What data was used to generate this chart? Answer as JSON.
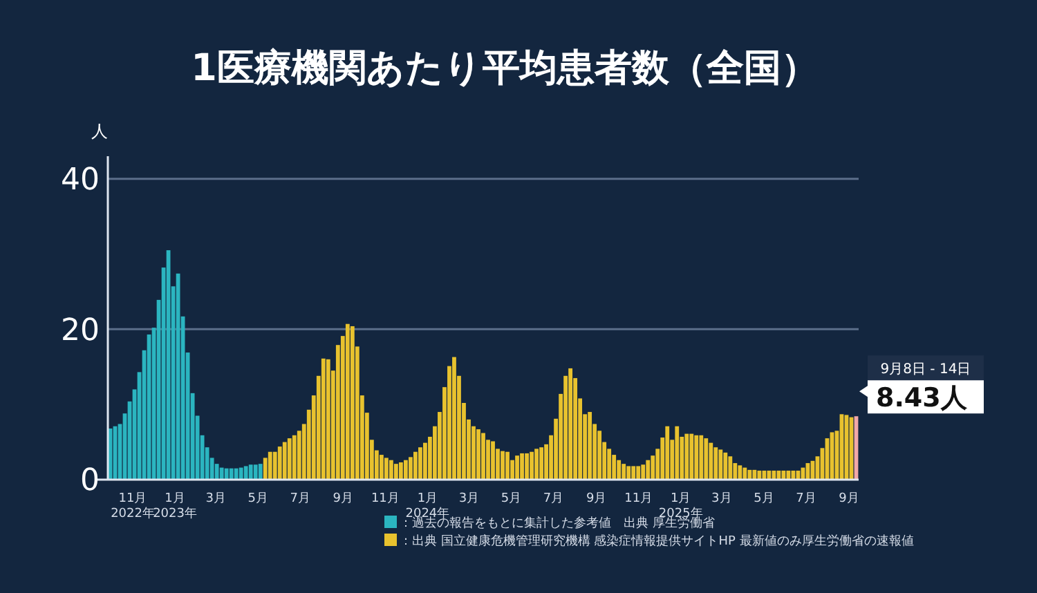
{
  "chart_data": {
    "type": "bar",
    "title": "1医療機関あたり平均患者数（全国）",
    "ylabel": "人",
    "xlim": [
      "2022-09-26",
      "2025-09-15"
    ],
    "ylim": [
      0,
      43
    ],
    "yticks": [
      0,
      20,
      40
    ],
    "grid": "y",
    "legend": "bottom",
    "xticks": [
      {
        "value": "2022-11-01",
        "label": "11月\n2022年"
      },
      {
        "value": "2023-01-01",
        "label": "1月\n2023年"
      },
      {
        "value": "2023-03-01",
        "label": "3月"
      },
      {
        "value": "2023-05-01",
        "label": "5月"
      },
      {
        "value": "2023-07-01",
        "label": "7月"
      },
      {
        "value": "2023-09-01",
        "label": "9月"
      },
      {
        "value": "2023-11-01",
        "label": "11月"
      },
      {
        "value": "2024-01-01",
        "label": "1月\n2024年"
      },
      {
        "value": "2024-03-01",
        "label": "3月"
      },
      {
        "value": "2024-05-01",
        "label": "5月"
      },
      {
        "value": "2024-07-01",
        "label": "7月"
      },
      {
        "value": "2024-09-01",
        "label": "9月"
      },
      {
        "value": "2024-11-01",
        "label": "11月"
      },
      {
        "value": "2025-01-01",
        "label": "1月\n2025年"
      },
      {
        "value": "2025-03-01",
        "label": "3月"
      },
      {
        "value": "2025-05-01",
        "label": "5月"
      },
      {
        "value": "2025-07-01",
        "label": "7月"
      },
      {
        "value": "2025-09-01",
        "label": "9月"
      }
    ],
    "series": [
      {
        "name": "：過去の報告をもとに集計した参考値　出典 厚生労働省",
        "color": "#2bb5c0",
        "x": [
          "2022-09-26",
          "2022-10-03",
          "2022-10-10",
          "2022-10-17",
          "2022-10-24",
          "2022-10-31",
          "2022-11-07",
          "2022-11-14",
          "2022-11-21",
          "2022-11-28",
          "2022-12-05",
          "2022-12-12",
          "2022-12-19",
          "2022-12-26",
          "2023-01-02",
          "2023-01-09",
          "2023-01-16",
          "2023-01-23",
          "2023-01-30",
          "2023-02-06",
          "2023-02-13",
          "2023-02-20",
          "2023-02-27",
          "2023-03-06",
          "2023-03-13",
          "2023-03-20",
          "2023-03-27",
          "2023-04-03",
          "2023-04-10",
          "2023-04-17",
          "2023-04-24",
          "2023-05-01"
        ],
        "values": [
          6.8,
          7.1,
          7.4,
          8.8,
          10.4,
          12,
          14.3,
          17.2,
          19.3,
          20.2,
          23.9,
          28.2,
          30.5,
          25.7,
          27.4,
          21.7,
          16.9,
          11.5,
          8.5,
          5.9,
          4.3,
          2.9,
          2.1,
          1.6,
          1.5,
          1.5,
          1.5,
          1.6,
          1.8,
          2,
          2,
          2.1
        ]
      },
      {
        "name": "：出典 国立健康危機管理研究機構 感染症情報提供サイトHP 最新値のみ厚生労働省の速報値",
        "color": "#e8c22e",
        "x": [
          "2023-05-08",
          "2023-05-15",
          "2023-05-22",
          "2023-05-29",
          "2023-06-05",
          "2023-06-12",
          "2023-06-19",
          "2023-06-26",
          "2023-07-03",
          "2023-07-10",
          "2023-07-17",
          "2023-07-24",
          "2023-07-31",
          "2023-08-07",
          "2023-08-14",
          "2023-08-21",
          "2023-08-28",
          "2023-09-04",
          "2023-09-11",
          "2023-09-18",
          "2023-09-25",
          "2023-10-02",
          "2023-10-09",
          "2023-10-16",
          "2023-10-23",
          "2023-10-30",
          "2023-11-06",
          "2023-11-13",
          "2023-11-20",
          "2023-11-27",
          "2023-12-04",
          "2023-12-11",
          "2023-12-18",
          "2023-12-25",
          "2024-01-01",
          "2024-01-08",
          "2024-01-15",
          "2024-01-22",
          "2024-01-29",
          "2024-02-05",
          "2024-02-12",
          "2024-02-19",
          "2024-02-26",
          "2024-03-04",
          "2024-03-11",
          "2024-03-18",
          "2024-03-25",
          "2024-04-01",
          "2024-04-08",
          "2024-04-15",
          "2024-04-22",
          "2024-04-29",
          "2024-05-06",
          "2024-05-13",
          "2024-05-20",
          "2024-05-27",
          "2024-06-03",
          "2024-06-10",
          "2024-06-17",
          "2024-06-24",
          "2024-07-01",
          "2024-07-08",
          "2024-07-15",
          "2024-07-22",
          "2024-07-29",
          "2024-08-05",
          "2024-08-12",
          "2024-08-19",
          "2024-08-26",
          "2024-09-02",
          "2024-09-09",
          "2024-09-16",
          "2024-09-23",
          "2024-09-30",
          "2024-10-07",
          "2024-10-14",
          "2024-10-21",
          "2024-10-28",
          "2024-11-04",
          "2024-11-11",
          "2024-11-18",
          "2024-11-25",
          "2024-12-02",
          "2024-12-09",
          "2024-12-16",
          "2024-12-23",
          "2024-12-30",
          "2025-01-06",
          "2025-01-13",
          "2025-01-20",
          "2025-01-27",
          "2025-02-03",
          "2025-02-10",
          "2025-02-17",
          "2025-02-24",
          "2025-03-03",
          "2025-03-10",
          "2025-03-17",
          "2025-03-24",
          "2025-03-31",
          "2025-04-07",
          "2025-04-14",
          "2025-04-21",
          "2025-04-28",
          "2025-05-05",
          "2025-05-12",
          "2025-05-19",
          "2025-05-26",
          "2025-06-02",
          "2025-06-09",
          "2025-06-16",
          "2025-06-23",
          "2025-06-30",
          "2025-07-07",
          "2025-07-14",
          "2025-07-21",
          "2025-07-28",
          "2025-08-04",
          "2025-08-11",
          "2025-08-18",
          "2025-08-25",
          "2025-09-01"
        ],
        "values": [
          2.9,
          3.7,
          3.7,
          4.4,
          5,
          5.5,
          5.9,
          6.5,
          7.4,
          9.3,
          11.2,
          13.8,
          16.1,
          16,
          14.5,
          17.9,
          19.1,
          20.7,
          20.4,
          17.7,
          11.2,
          8.9,
          5.3,
          3.9,
          3.3,
          2.9,
          2.6,
          2.1,
          2.3,
          2.6,
          3,
          3.7,
          4.3,
          4.9,
          5.7,
          7.1,
          9,
          12.3,
          15.1,
          16.3,
          13.8,
          10.2,
          8,
          7.1,
          6.7,
          6.2,
          5.3,
          5.1,
          4.1,
          3.8,
          3.7,
          2.6,
          3.2,
          3.5,
          3.5,
          3.7,
          4.1,
          4.3,
          4.7,
          5.9,
          8.1,
          11.4,
          13.8,
          14.8,
          13.5,
          10.8,
          8.7,
          9,
          7.4,
          6.5,
          5,
          4.1,
          3.3,
          2.6,
          2.1,
          1.8,
          1.8,
          1.8,
          2,
          2.6,
          3.2,
          4.1,
          5.6,
          7.1,
          5.3,
          7.1,
          5.7,
          6.1,
          6.1,
          5.9,
          5.9,
          5.5,
          4.9,
          4.3,
          4,
          3.6,
          3.1,
          2.2,
          1.9,
          1.6,
          1.3,
          1.3,
          1.2,
          1.2,
          1.2,
          1.2,
          1.2,
          1.2,
          1.2,
          1.2,
          1.2,
          1.6,
          2.2,
          2.5,
          3.1,
          4.2,
          5.5,
          6.3,
          6.5,
          8.7,
          8.6,
          8.3
        ]
      },
      {
        "color": "#f2a8a8",
        "x": [
          "2025-09-08"
        ],
        "values": [
          8.43
        ]
      }
    ],
    "annotations": [
      "9月8日 - 14日",
      {
        "text": "8.43人",
        "x": "2025-09-08",
        "y": 8.43
      }
    ]
  }
}
